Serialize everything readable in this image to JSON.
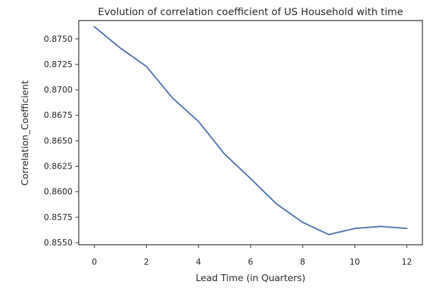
{
  "chart_data": {
    "type": "line",
    "title": "Evolution of correlation coefficient of US Household with time",
    "xlabel": "Lead Time (in Quarters)",
    "ylabel": "Correlation_Coefficient",
    "xlim": [
      -0.6,
      12.6
    ],
    "ylim": [
      0.8548,
      0.8768
    ],
    "xticks": [
      0,
      2,
      4,
      6,
      8,
      10,
      12
    ],
    "xtick_labels": [
      "0",
      "2",
      "4",
      "6",
      "8",
      "10",
      "12"
    ],
    "yticks": [
      0.855,
      0.8575,
      0.86,
      0.8625,
      0.865,
      0.8675,
      0.87,
      0.8725,
      0.875
    ],
    "ytick_labels": [
      "0.8550",
      "0.8575",
      "0.8600",
      "0.8625",
      "0.8650",
      "0.8675",
      "0.8700",
      "0.8725",
      "0.8750"
    ],
    "grid": false,
    "legend": "none",
    "series": [
      {
        "color": "#4c72b0",
        "x": [
          0,
          1,
          2,
          3,
          4,
          5,
          6,
          7,
          8,
          9,
          10,
          11,
          12
        ],
        "y": [
          0.8762,
          0.8741,
          0.8723,
          0.8692,
          0.8669,
          0.8637,
          0.8613,
          0.8588,
          0.857,
          0.8558,
          0.8564,
          0.8566,
          0.8564
        ]
      }
    ]
  }
}
